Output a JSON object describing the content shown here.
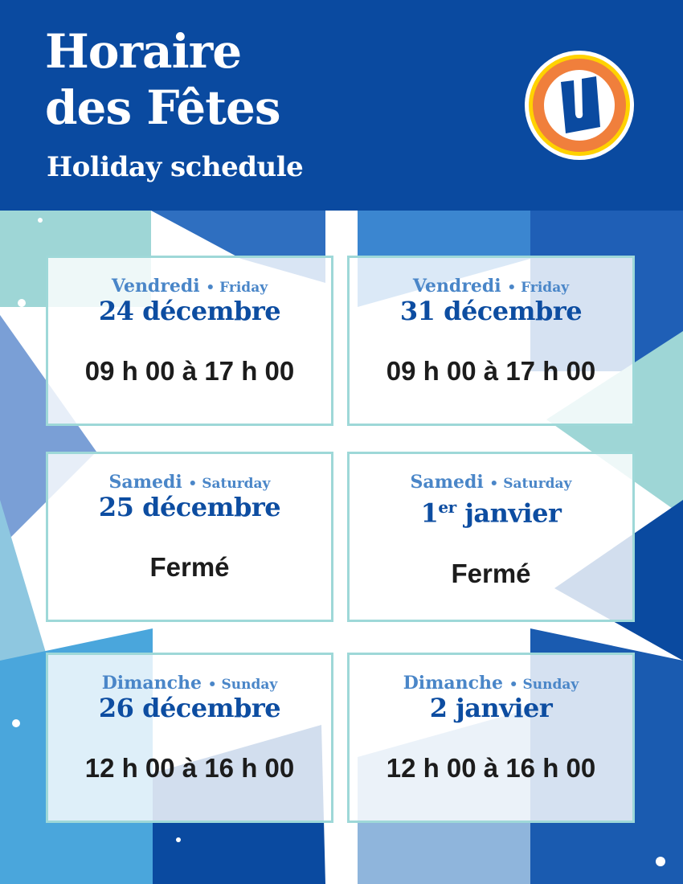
{
  "header": {
    "title_line1": "Horaire",
    "title_line2": "des Fêtes",
    "subtitle": "Holiday schedule",
    "logo_letter": "U"
  },
  "colors": {
    "header_bg": "#0a4aa0",
    "day": "#4a86c8",
    "date": "#0d4da1",
    "border": "#9ed8d8",
    "logo_orange": "#f07f3c",
    "logo_yellow": "#ffd200"
  },
  "cards": [
    {
      "day_fr": "Vendredi",
      "day_en": "Friday",
      "date": "24 décembre",
      "date_sup": "",
      "hours": "09 h 00 à 17 h 00"
    },
    {
      "day_fr": "Vendredi",
      "day_en": "Friday",
      "date": "31 décembre",
      "date_sup": "",
      "hours": "09 h 00 à 17 h 00"
    },
    {
      "day_fr": "Samedi",
      "day_en": "Saturday",
      "date": "25 décembre",
      "date_sup": "",
      "hours": "Fermé"
    },
    {
      "day_fr": "Samedi",
      "day_en": "Saturday",
      "date": "1",
      "date_sup": "er",
      "date_rest": " janvier",
      "hours": "Fermé"
    },
    {
      "day_fr": "Dimanche",
      "day_en": "Sunday",
      "date": "26 décembre",
      "date_sup": "",
      "hours": "12 h 00 à 16 h 00"
    },
    {
      "day_fr": "Dimanche",
      "day_en": "Sunday",
      "date": "2 janvier",
      "date_sup": "",
      "hours": "12 h 00 à 16 h 00"
    }
  ],
  "separator": "•"
}
